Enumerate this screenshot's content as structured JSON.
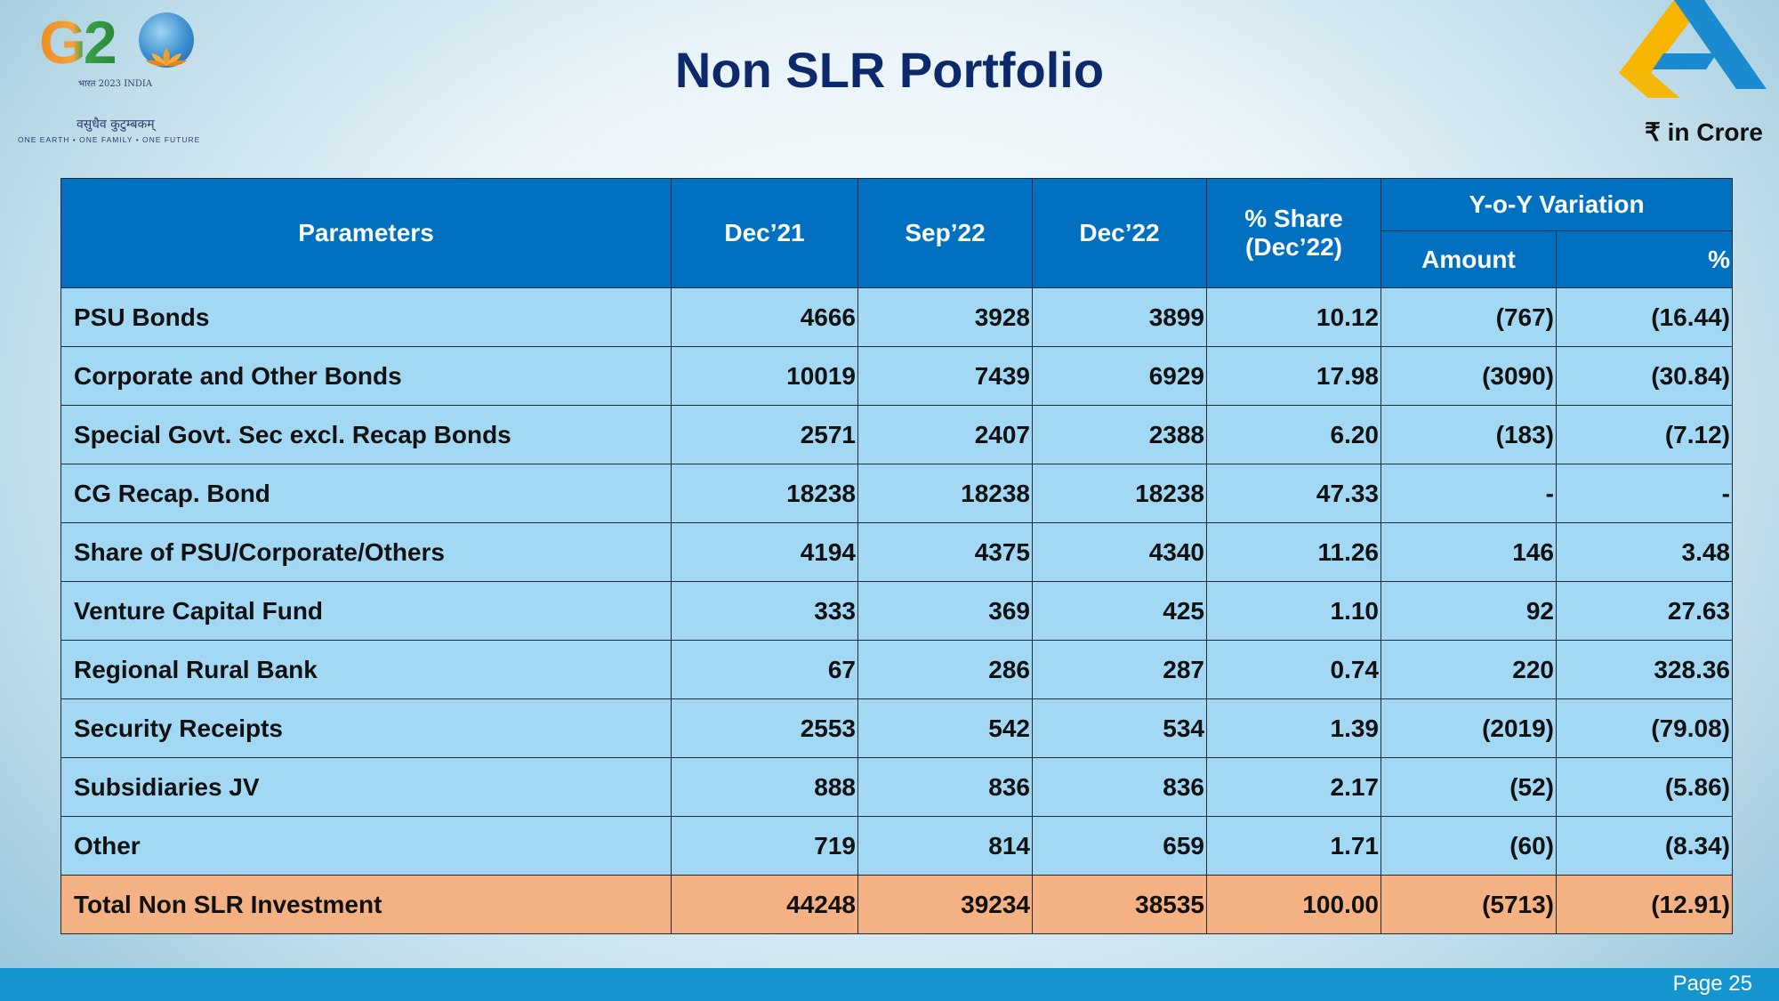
{
  "header": {
    "title": "Non SLR Portfolio",
    "unit_note": "₹ in Crore"
  },
  "g20_logo": {
    "letters": "G2",
    "year_text": "भारत 2023 INDIA",
    "hindi_text": "वसुधैव कुटुम्बकम्",
    "tagline": "ONE EARTH • ONE FAMILY • ONE FUTURE"
  },
  "table": {
    "headers": {
      "parameters": "Parameters",
      "dec21": "Dec’21",
      "sep22": "Sep’22",
      "dec22": "Dec’22",
      "share_line1": "% Share",
      "share_line2": "(Dec’22)",
      "yoy": "Y-o-Y Variation",
      "amount": "Amount",
      "pct": "%"
    },
    "rows": [
      {
        "param": "PSU Bonds",
        "dec21": "4666",
        "sep22": "3928",
        "dec22": "3899",
        "share": "10.12",
        "amount": "(767)",
        "pct": "(16.44)"
      },
      {
        "param": "Corporate and Other Bonds",
        "dec21": "10019",
        "sep22": "7439",
        "dec22": "6929",
        "share": "17.98",
        "amount": "(3090)",
        "pct": "(30.84)"
      },
      {
        "param": "Special Govt. Sec excl. Recap Bonds",
        "dec21": "2571",
        "sep22": "2407",
        "dec22": "2388",
        "share": "6.20",
        "amount": "(183)",
        "pct": "(7.12)"
      },
      {
        "param": "CG Recap. Bond",
        "dec21": "18238",
        "sep22": "18238",
        "dec22": "18238",
        "share": "47.33",
        "amount": "-",
        "pct": "-"
      },
      {
        "param": "Share of PSU/Corporate/Others",
        "dec21": "4194",
        "sep22": "4375",
        "dec22": "4340",
        "share": "11.26",
        "amount": "146",
        "pct": "3.48"
      },
      {
        "param": "Venture Capital Fund",
        "dec21": "333",
        "sep22": "369",
        "dec22": "425",
        "share": "1.10",
        "amount": "92",
        "pct": "27.63"
      },
      {
        "param": "Regional Rural Bank",
        "dec21": "67",
        "sep22": "286",
        "dec22": "287",
        "share": "0.74",
        "amount": "220",
        "pct": "328.36"
      },
      {
        "param": "Security Receipts",
        "dec21": "2553",
        "sep22": "542",
        "dec22": "534",
        "share": "1.39",
        "amount": "(2019)",
        "pct": "(79.08)"
      },
      {
        "param": "Subsidiaries JV",
        "dec21": "888",
        "sep22": "836",
        "dec22": "836",
        "share": "2.17",
        "amount": "(52)",
        "pct": "(5.86)"
      },
      {
        "param": "Other",
        "dec21": "719",
        "sep22": "814",
        "dec22": "659",
        "share": "1.71",
        "amount": "(60)",
        "pct": "(8.34)"
      }
    ],
    "total": {
      "param": "Total Non SLR Investment",
      "dec21": "44248",
      "sep22": "39234",
      "dec22": "38535",
      "share": "100.00",
      "amount": "(5713)",
      "pct": "(12.91)"
    }
  },
  "footer": {
    "page": "Page 25"
  },
  "colors": {
    "header_blue": "#0070c0",
    "row_light_blue": "#a3d8f5",
    "total_orange": "#f4b183",
    "title_navy": "#0c2a6b",
    "footer_blue": "#1595cf"
  },
  "icons": {
    "left_logo": "g20-logo",
    "right_logo": "bank-logo"
  }
}
